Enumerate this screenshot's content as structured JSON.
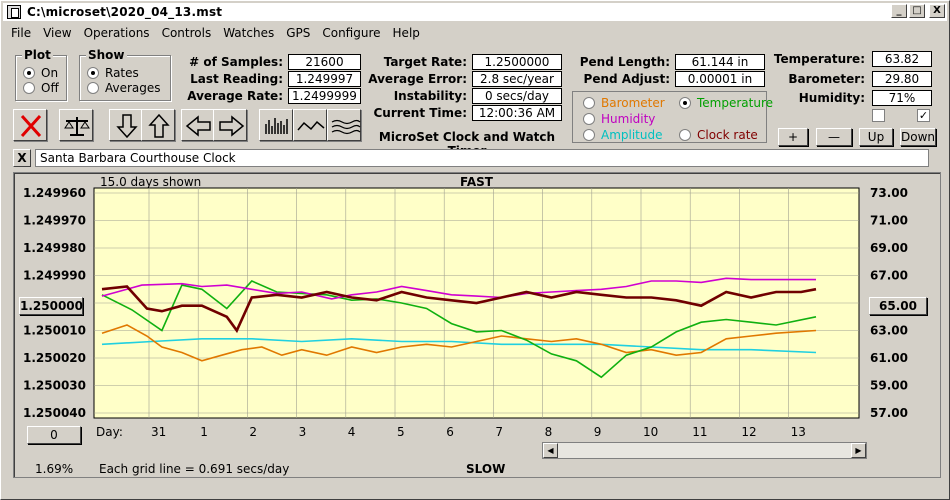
{
  "window": {
    "title": "C:\\microset\\2020_04_13.mst",
    "min_glyph": "_",
    "max_glyph": "□",
    "close_glyph": "X"
  },
  "menu": [
    "File",
    "View",
    "Operations",
    "Controls",
    "Watches",
    "GPS",
    "Configure",
    "Help"
  ],
  "plot_group": {
    "label": "Plot",
    "options": [
      "On",
      "Off"
    ],
    "selected": "On"
  },
  "show_group": {
    "label": "Show",
    "options": [
      "Rates",
      "Averages"
    ],
    "selected": "Rates"
  },
  "stats": {
    "samples_label": "# of Samples:",
    "samples": "21600",
    "last_reading_label": "Last Reading:",
    "last_reading": "1.249997",
    "average_rate_label": "Average Rate:",
    "average_rate": "1.2499999",
    "target_rate_label": "Target Rate:",
    "target_rate": "1.2500000",
    "average_error_label": "Average Error:",
    "average_error": "2.8 sec/year",
    "instability_label": "Instability:",
    "instability": "0 secs/day",
    "current_time_label": "Current Time:",
    "current_time": "12:00:36 AM",
    "pend_length_label": "Pend Length:",
    "pend_length": "61.144 in",
    "pend_adjust_label": "Pend Adjust:",
    "pend_adjust": "0.00001 in",
    "temperature_label": "Temperature:",
    "temperature": "63.82",
    "barometer_label": "Barometer:",
    "barometer": "29.80",
    "humidity_label": "Humidity:",
    "humidity": "71%"
  },
  "app_caption": "MicroSet Clock and Watch Timer",
  "series_select": {
    "options": [
      {
        "label": "Barometer",
        "color": "#e07800"
      },
      {
        "label": "Temperature",
        "color": "#00a000"
      },
      {
        "label": "Humidity",
        "color": "#c000c0"
      },
      {
        "label": "Amplitude",
        "color": "#00c0c0"
      },
      {
        "label": "Clock rate",
        "color": "#800000"
      }
    ],
    "selected": "Temperature"
  },
  "scale_buttons": {
    "plus": "+",
    "minus": "—",
    "up": "Up",
    "down": "Down"
  },
  "checkboxes": [
    false,
    true
  ],
  "clock_name": "Santa Barbara Courthouse Clock",
  "clear_glyph": "X",
  "footer": {
    "left_value_button": "1.250000",
    "right_value_button": "65.00",
    "bottom_left_button": "0",
    "percent": "1.69%",
    "grid_note": "Each grid line = 0.691 secs/day"
  },
  "chart_data": {
    "type": "line",
    "title_top": "FAST",
    "title_bottom": "SLOW",
    "days_shown": "15.0 days shown",
    "x_axis_caption": "Day:",
    "x_tick_labels": [
      "31",
      "1",
      "2",
      "3",
      "4",
      "5",
      "6",
      "7",
      "8",
      "9",
      "10",
      "11",
      "12",
      "13"
    ],
    "x_range": [
      0,
      15
    ],
    "y_left_ticks": [
      "1.249960",
      "1.249970",
      "1.249980",
      "1.249990",
      "1.250000",
      "1.250010",
      "1.250020",
      "1.250030",
      "1.250040"
    ],
    "y_left_range": [
      1.24996,
      1.25004
    ],
    "y_right_ticks": [
      "73.00",
      "71.00",
      "69.00",
      "67.00",
      "65.00",
      "63.00",
      "61.00",
      "59.00",
      "57.00"
    ],
    "y_right_range": [
      57,
      73
    ],
    "colors": {
      "background": "#ffffc8",
      "grid": "#a0a090",
      "barometer": "#e07800",
      "temperature": "#10b010",
      "humidity": "#d000d0",
      "amplitude": "#20d0e0",
      "clock_rate": "#700000"
    },
    "series": [
      {
        "name": "Clock rate",
        "axis": "left",
        "x": [
          0,
          0.5,
          0.9,
          1.2,
          1.6,
          2.0,
          2.5,
          2.7,
          3.0,
          3.5,
          4.0,
          4.5,
          5.0,
          5.5,
          6.0,
          6.5,
          7.0,
          7.5,
          8.0,
          8.5,
          9.0,
          9.5,
          10.0,
          10.5,
          11.0,
          11.5,
          12.0,
          12.5,
          13.0,
          13.5,
          14.0,
          14.3
        ],
        "y": [
          1.249995,
          1.249994,
          1.250002,
          1.250003,
          1.250001,
          1.250001,
          1.250005,
          1.25001,
          1.249998,
          1.249997,
          1.249998,
          1.249996,
          1.249998,
          1.249999,
          1.249996,
          1.249998,
          1.249999,
          1.25,
          1.249998,
          1.249996,
          1.249998,
          1.249996,
          1.249997,
          1.249998,
          1.249998,
          1.249999,
          1.250001,
          1.249996,
          1.249998,
          1.249996,
          1.249996,
          1.249995
        ]
      },
      {
        "name": "Humidity",
        "axis": "right",
        "x": [
          0,
          0.8,
          1.6,
          2.0,
          2.5,
          3.0,
          3.5,
          4.0,
          4.6,
          5.0,
          5.5,
          6.0,
          6.5,
          7.0,
          7.5,
          8.0,
          8.5,
          9.0,
          9.5,
          10.0,
          10.5,
          11.0,
          11.5,
          12.0,
          12.5,
          13.0,
          13.5,
          14.3
        ],
        "y": [
          65.5,
          66.3,
          66.4,
          66.2,
          66.3,
          66.0,
          65.7,
          65.8,
          65.3,
          65.6,
          65.8,
          66.2,
          65.9,
          65.6,
          65.5,
          65.4,
          65.7,
          65.8,
          65.9,
          66.0,
          66.2,
          66.6,
          66.6,
          66.5,
          66.8,
          66.7,
          66.7,
          66.7
        ]
      },
      {
        "name": "Temperature",
        "axis": "right",
        "x": [
          0,
          0.6,
          1.2,
          1.6,
          2.0,
          2.5,
          3.0,
          3.5,
          4.0,
          4.5,
          5.0,
          5.5,
          6.0,
          6.5,
          7.0,
          7.5,
          8.0,
          8.5,
          9.0,
          9.5,
          10.0,
          10.5,
          11.0,
          11.5,
          12.0,
          12.5,
          13.0,
          13.5,
          14.3
        ],
        "y": [
          65.6,
          64.5,
          63.0,
          66.3,
          66.0,
          64.6,
          66.6,
          65.8,
          65.7,
          65.6,
          65.2,
          65.3,
          65.0,
          64.6,
          63.5,
          62.9,
          63.0,
          62.3,
          61.3,
          60.8,
          59.6,
          61.2,
          61.8,
          62.9,
          63.6,
          63.8,
          63.6,
          63.4,
          64.0
        ]
      },
      {
        "name": "Barometer",
        "axis": "left",
        "x": [
          0,
          0.5,
          0.9,
          1.2,
          1.6,
          2.0,
          2.4,
          2.8,
          3.2,
          3.6,
          4.0,
          4.5,
          5.0,
          5.5,
          6.0,
          6.5,
          7.0,
          7.5,
          8.0,
          8.5,
          9.0,
          9.5,
          10.0,
          10.5,
          11.0,
          11.5,
          12.0,
          12.5,
          13.0,
          13.5,
          14.3
        ],
        "y": [
          1.250011,
          1.250008,
          1.250012,
          1.250016,
          1.250018,
          1.250021,
          1.250019,
          1.250017,
          1.250016,
          1.250019,
          1.250017,
          1.250019,
          1.250016,
          1.250018,
          1.250016,
          1.250015,
          1.250016,
          1.250014,
          1.250012,
          1.250013,
          1.250014,
          1.250013,
          1.250015,
          1.250018,
          1.250017,
          1.250019,
          1.250018,
          1.250013,
          1.250012,
          1.250011,
          1.25001
        ]
      },
      {
        "name": "Amplitude",
        "axis": "left",
        "x": [
          0,
          1.0,
          2.0,
          3.0,
          4.0,
          5.0,
          6.0,
          7.0,
          8.0,
          9.0,
          10.0,
          11.0,
          12.0,
          13.0,
          14.3
        ],
        "y": [
          1.250015,
          1.250014,
          1.250013,
          1.250013,
          1.250014,
          1.250013,
          1.250014,
          1.250014,
          1.250015,
          1.250015,
          1.250015,
          1.250016,
          1.250017,
          1.250017,
          1.250018
        ]
      }
    ]
  }
}
